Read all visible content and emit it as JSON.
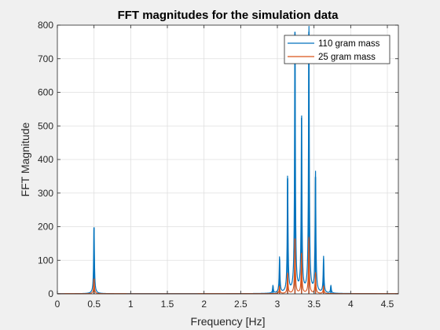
{
  "chart_data": {
    "type": "line",
    "title": "FFT magnitudes for the simulation data",
    "xlabel": "Frequency [Hz]",
    "ylabel": "FFT Magnitude",
    "xlim": [
      0,
      4.65
    ],
    "ylim": [
      0,
      800
    ],
    "x_ticks": [
      0,
      0.5,
      1,
      1.5,
      2,
      2.5,
      3,
      3.5,
      4,
      4.5
    ],
    "x_tick_labels": [
      "0",
      "0.5",
      "1",
      "1.5",
      "2",
      "2.5",
      "3",
      "3.5",
      "4",
      "4.5"
    ],
    "y_ticks": [
      0,
      100,
      200,
      300,
      400,
      500,
      600,
      700,
      800
    ],
    "y_tick_labels": [
      "0",
      "100",
      "200",
      "300",
      "400",
      "500",
      "600",
      "700",
      "800"
    ],
    "grid": true,
    "legend_position": "top-right",
    "series": [
      {
        "name": "110 gram mass",
        "color": "#0072BD",
        "peaks": [
          {
            "x": 0.5,
            "y": 198
          },
          {
            "x": 2.94,
            "y": 22
          },
          {
            "x": 3.03,
            "y": 104
          },
          {
            "x": 3.14,
            "y": 344
          },
          {
            "x": 3.24,
            "y": 780
          },
          {
            "x": 3.33,
            "y": 524
          },
          {
            "x": 3.43,
            "y": 780
          },
          {
            "x": 3.52,
            "y": 348
          },
          {
            "x": 3.63,
            "y": 104
          },
          {
            "x": 3.73,
            "y": 22
          }
        ]
      },
      {
        "name": "25 gram mass",
        "color": "#D95319",
        "peaks": [
          {
            "x": 0.5,
            "y": 45
          },
          {
            "x": 3.03,
            "y": 22
          },
          {
            "x": 3.14,
            "y": 60
          },
          {
            "x": 3.24,
            "y": 165
          },
          {
            "x": 3.33,
            "y": 120
          },
          {
            "x": 3.43,
            "y": 165
          },
          {
            "x": 3.52,
            "y": 60
          },
          {
            "x": 3.63,
            "y": 22
          }
        ]
      }
    ]
  }
}
